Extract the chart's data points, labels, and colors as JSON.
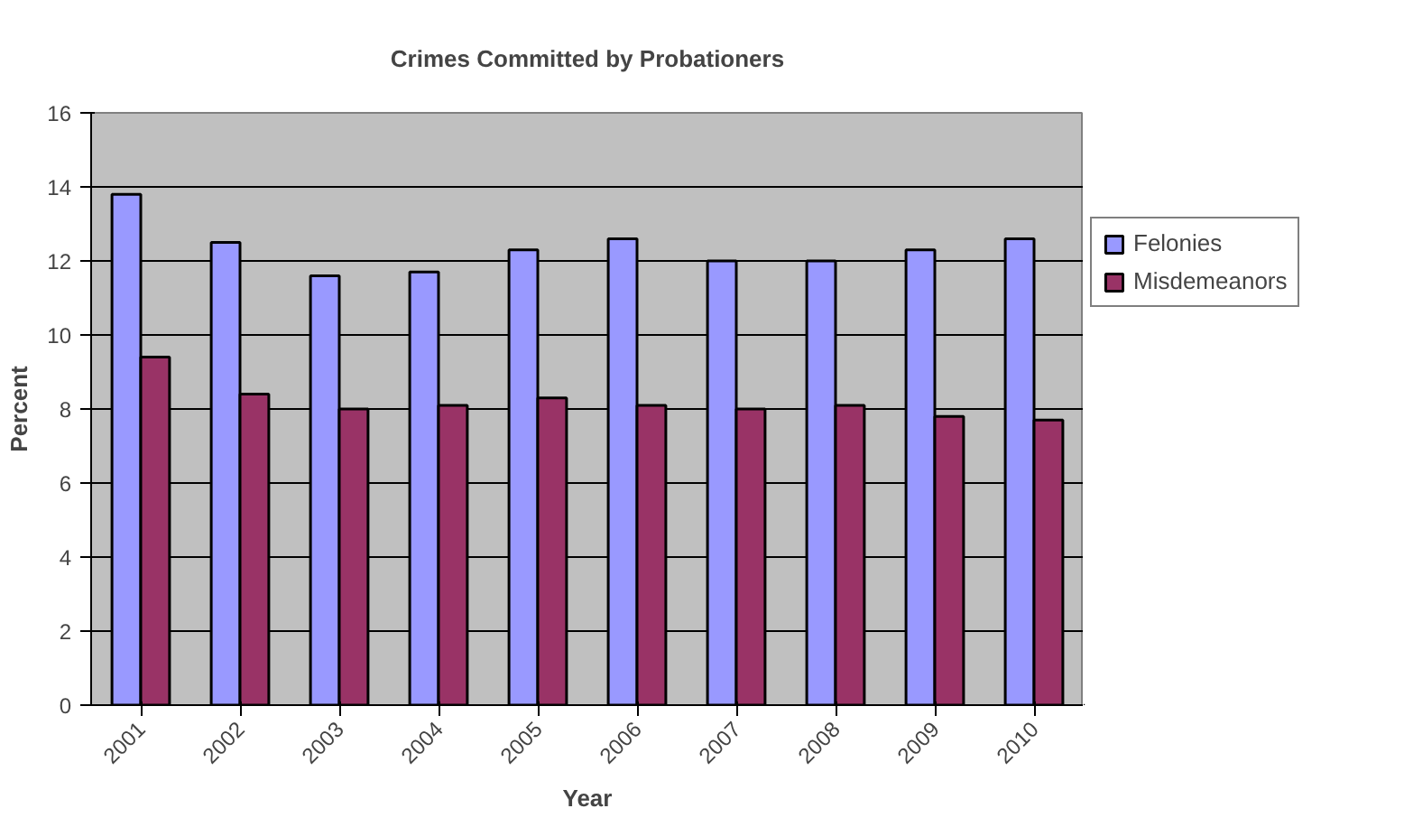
{
  "chart_data": {
    "type": "bar",
    "title": "Crimes Committed by Probationers",
    "xlabel": "Year",
    "ylabel": "Percent",
    "categories": [
      "2001",
      "2002",
      "2003",
      "2004",
      "2005",
      "2006",
      "2007",
      "2008",
      "2009",
      "2010"
    ],
    "series": [
      {
        "name": "Felonies",
        "color": "#9999ff",
        "values": [
          13.8,
          12.5,
          11.6,
          11.7,
          12.3,
          12.6,
          12.0,
          12.0,
          12.3,
          12.6
        ]
      },
      {
        "name": "Misdemeanors",
        "color": "#993366",
        "values": [
          9.4,
          8.4,
          8.0,
          8.1,
          8.3,
          8.1,
          8.0,
          8.1,
          7.8,
          7.7
        ]
      }
    ],
    "ylim": [
      0,
      16
    ],
    "yticks": [
      0,
      2,
      4,
      6,
      8,
      10,
      12,
      14,
      16
    ],
    "grid": "y",
    "legend": "right"
  }
}
